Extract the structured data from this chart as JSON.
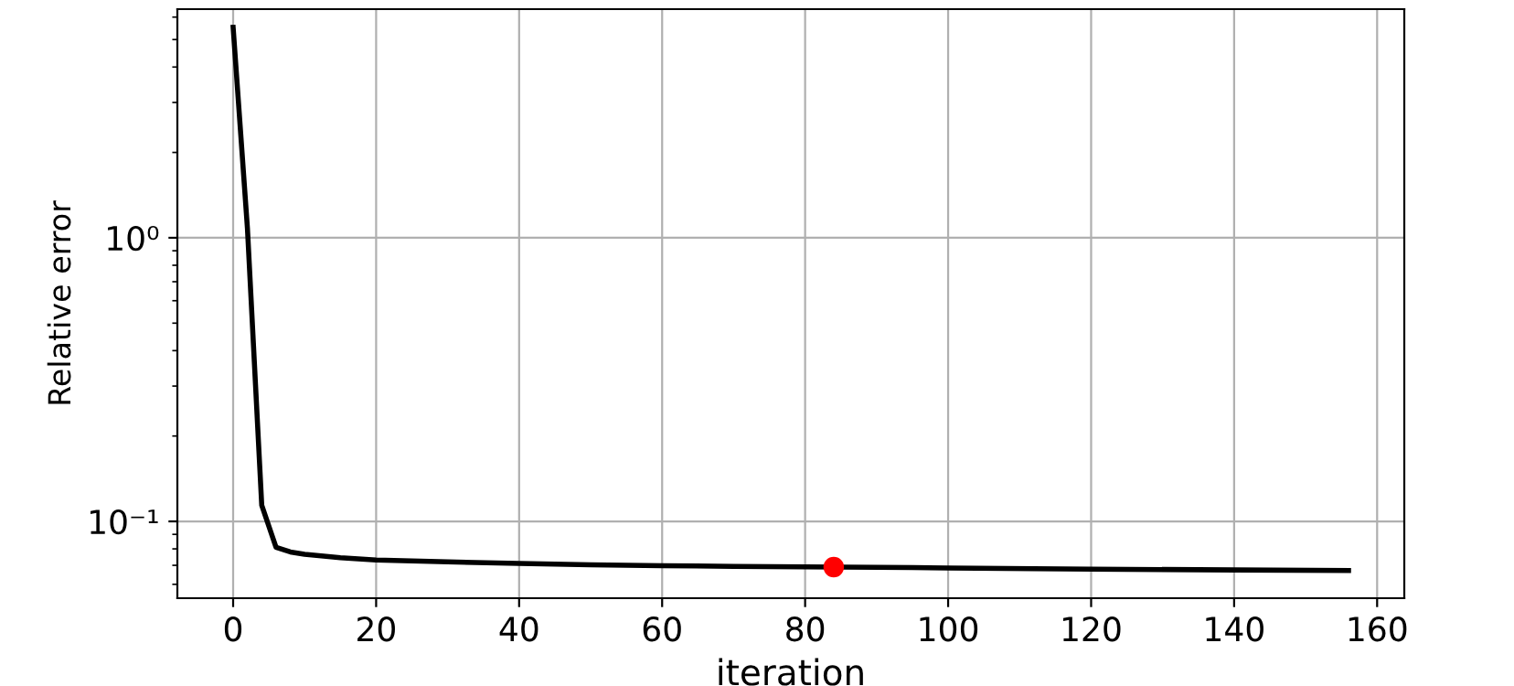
{
  "chart_data": {
    "type": "line",
    "xlabel": "iteration",
    "ylabel": "Relative error",
    "log": "y",
    "grid": true,
    "xlim": [
      -7.8,
      163.8
    ],
    "xticks": [
      0,
      20,
      40,
      60,
      80,
      100,
      120,
      140,
      160
    ],
    "ylim": [
      0.0536,
      6.4
    ],
    "yticks": [
      {
        "value": 0.1,
        "label": "10⁻¹"
      },
      {
        "value": 1,
        "label": "10⁰"
      }
    ],
    "series": [
      {
        "color": "#000000",
        "marker": "none",
        "x": [
          0,
          2,
          4,
          6,
          8,
          10,
          15,
          20,
          30,
          40,
          50,
          60,
          70,
          95,
          100,
          120,
          140,
          156
        ],
        "values": [
          5.52,
          1.08,
          0.114,
          0.081,
          0.078,
          0.0766,
          0.0745,
          0.0731,
          0.072,
          0.0711,
          0.0703,
          0.0698,
          0.0694,
          0.0687,
          0.0685,
          0.0679,
          0.0674,
          0.0671
        ]
      },
      {
        "type": "scatter",
        "color": "#ff0000",
        "marker": "circle",
        "x": [
          84
        ],
        "values": [
          0.069
        ]
      }
    ]
  }
}
